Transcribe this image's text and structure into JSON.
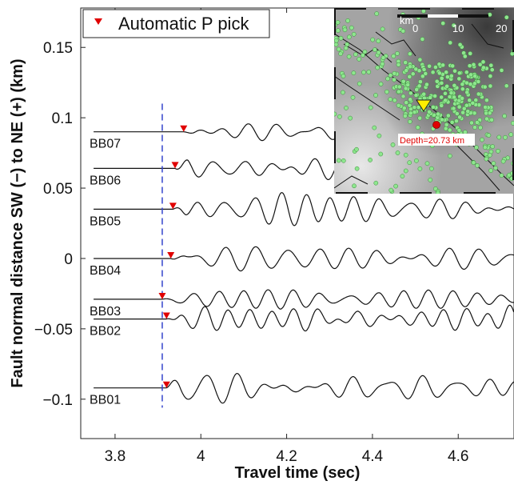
{
  "chart_data": {
    "type": "line",
    "xlabel": "Travel time (sec)",
    "ylabel": "Fault normal distance SW (−) to NE (+) (km)",
    "xlim": [
      3.72,
      4.73
    ],
    "ylim": [
      -0.128,
      0.178
    ],
    "xticks": [
      3.8,
      4.0,
      4.2,
      4.4,
      4.6
    ],
    "xtick_labels": [
      "3.8",
      "4",
      "4.2",
      "4.4",
      "4.6"
    ],
    "yticks": [
      0.15,
      0.1,
      0.05,
      0,
      -0.05,
      -0.1
    ],
    "ytick_labels": [
      "0.15",
      "0.1",
      "0.05",
      "0",
      "−0.05",
      "−0.1"
    ],
    "grid": false,
    "legend": {
      "position": "top-left",
      "entries": [
        {
          "label": "Automatic P pick",
          "marker": "red-down-triangle"
        }
      ]
    },
    "reference_line": {
      "x": 3.91,
      "style": "dashed",
      "color": "#3344cc"
    },
    "series": [
      {
        "name": "BB07",
        "offset": 0.09,
        "pick_time": 3.96
      },
      {
        "name": "BB06",
        "offset": 0.064,
        "pick_time": 3.94
      },
      {
        "name": "BB05",
        "offset": 0.035,
        "pick_time": 3.935
      },
      {
        "name": "BB04",
        "offset": 0.0,
        "pick_time": 3.93
      },
      {
        "name": "BB03",
        "offset": -0.029,
        "pick_time": 3.91
      },
      {
        "name": "BB02",
        "offset": -0.043,
        "pick_time": 3.92
      },
      {
        "name": "BB01",
        "offset": -0.092,
        "pick_time": 3.92
      }
    ]
  },
  "inset_map": {
    "scale_label": "km",
    "scale_ticks": [
      "0",
      "10",
      "20"
    ],
    "depth_label": "Depth=20.73 km",
    "colors": {
      "seismicity": "#8ee68e",
      "station": "#ffee00",
      "epicenter": "#e00000"
    }
  },
  "colors": {
    "trace": "#111111",
    "pick": "#e00000",
    "dashed": "#3344cc",
    "axes": "#222222"
  }
}
